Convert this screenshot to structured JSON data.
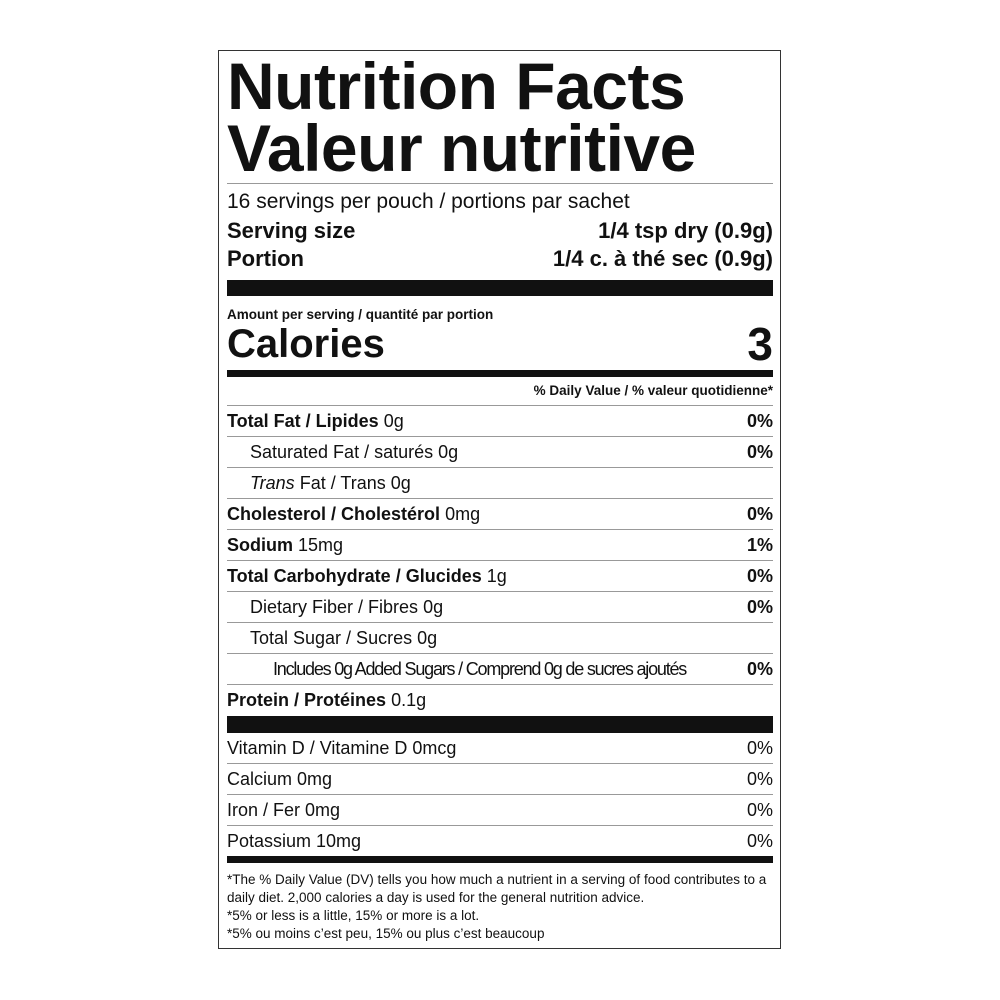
{
  "title_en": "Nutrition Facts",
  "title_fr": "Valeur nutritive",
  "servings": "16 servings per pouch / portions par sachet",
  "serving_size": {
    "label": "Serving size",
    "value": "1/4 tsp dry (0.9g)"
  },
  "portion": {
    "label": "Portion",
    "value": "1/4 c. à thé sec (0.9g)"
  },
  "amount_per_serving": "Amount per serving / quantité par portion",
  "calories": {
    "label": "Calories",
    "value": "3"
  },
  "dv_header": "% Daily Value / % valeur quotidienne*",
  "nutrients": [
    {
      "name": "Total Fat / Lipides",
      "amount": "0g",
      "dv": "0%"
    },
    {
      "name": "Saturated Fat / saturés",
      "amount": "0g",
      "dv": "0%"
    },
    {
      "name_italic": "Trans",
      "name": "Fat / Trans",
      "amount": "0g",
      "dv": ""
    },
    {
      "name": "Cholesterol / Cholestérol",
      "amount": "0mg",
      "dv": "0%"
    },
    {
      "name": "Sodium",
      "amount": "15mg",
      "dv": "1%"
    },
    {
      "name": "Total Carbohydrate / Glucides",
      "amount": "1g",
      "dv": "0%"
    },
    {
      "name": "Dietary Fiber / Fibres",
      "amount": "0g",
      "dv": "0%"
    },
    {
      "name": "Total Sugar / Sucres",
      "amount": "0g",
      "dv": ""
    },
    {
      "name": "Includes 0g Added Sugars / Comprend 0g de sucres ajoutés",
      "amount": "",
      "dv": "0%"
    },
    {
      "name": "Protein / Protéines",
      "amount": "0.1g",
      "dv": ""
    }
  ],
  "vitamins": [
    {
      "name": "Vitamin D / Vitamine D 0mcg",
      "dv": "0%"
    },
    {
      "name": "Calcium 0mg",
      "dv": "0%"
    },
    {
      "name": "Iron / Fer 0mg",
      "dv": "0%"
    },
    {
      "name": "Potassium 10mg",
      "dv": "0%"
    }
  ],
  "footnotes": [
    "*The % Daily Value (DV) tells you how much a nutrient in a serving of food contributes to a daily diet. 2,000 calories a day is used for the general nutrition advice.",
    "*5% or less is a little, 15% or more is a lot.",
    "*5% ou moins c’est peu, 15% ou plus c’est beaucoup"
  ]
}
